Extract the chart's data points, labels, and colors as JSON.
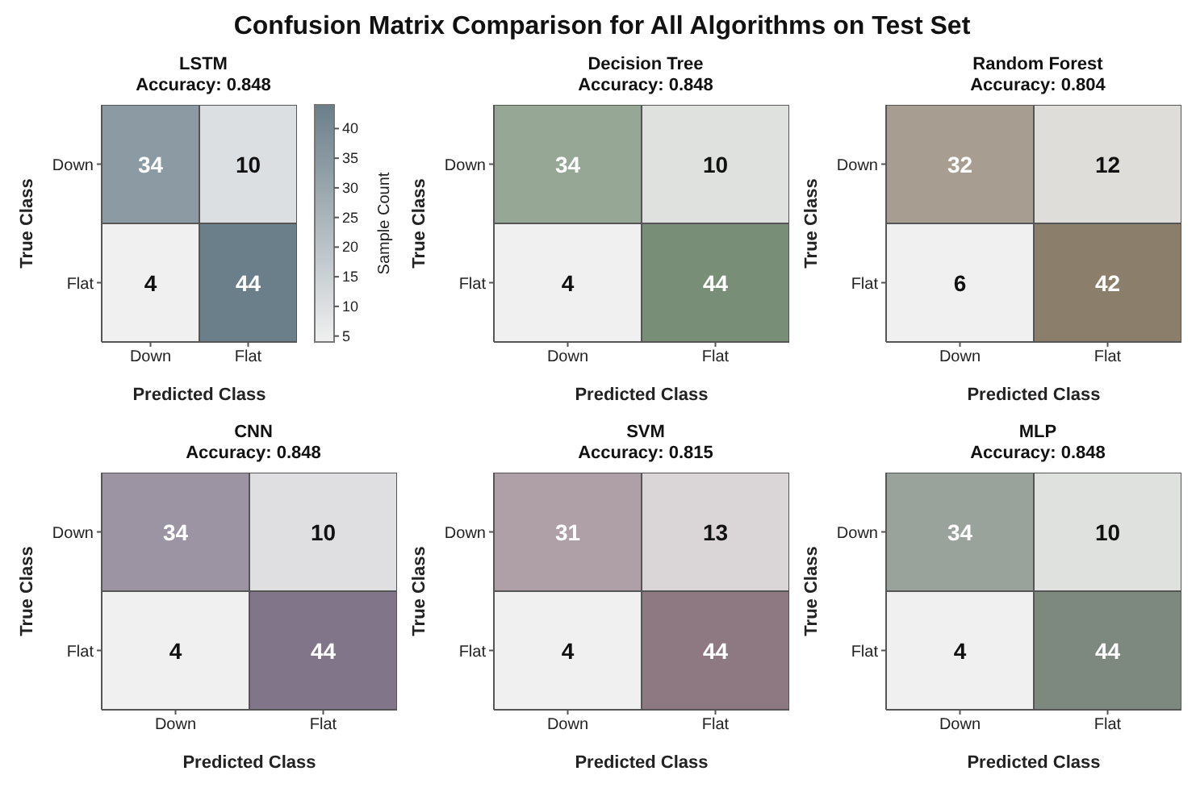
{
  "chart_data": [
    {
      "type": "heatmap",
      "title": "LSTM",
      "subtitle": "Accuracy: 0.848",
      "annotations": [
        "Confusion Matrix Comparison for All Algorithms on Test Set"
      ],
      "xlabel": "Predicted Class",
      "ylabel": "True Class",
      "categories": [
        "Down",
        "Flat"
      ],
      "y_categories": [
        "Down",
        "Flat"
      ],
      "cells": [
        [
          34,
          10
        ],
        [
          4,
          44
        ]
      ],
      "color": "#6a7f89",
      "data_labels": true,
      "clabel": "Sample Count",
      "clim": [
        4,
        44
      ],
      "cticks": [
        5,
        10,
        15,
        20,
        25,
        30,
        35,
        40
      ]
    },
    {
      "type": "heatmap",
      "title": "Decision Tree",
      "subtitle": "Accuracy: 0.848",
      "xlabel": "Predicted Class",
      "ylabel": "True Class",
      "categories": [
        "Down",
        "Flat"
      ],
      "y_categories": [
        "Down",
        "Flat"
      ],
      "cells": [
        [
          34,
          10
        ],
        [
          4,
          44
        ]
      ],
      "color": "#798e76",
      "data_labels": true
    },
    {
      "type": "heatmap",
      "title": "Random Forest",
      "subtitle": "Accuracy: 0.804",
      "xlabel": "Predicted Class",
      "ylabel": "True Class",
      "categories": [
        "Down",
        "Flat"
      ],
      "y_categories": [
        "Down",
        "Flat"
      ],
      "cells": [
        [
          32,
          12
        ],
        [
          6,
          42
        ]
      ],
      "color": "#8b7f6c",
      "data_labels": true
    },
    {
      "type": "heatmap",
      "title": "CNN",
      "subtitle": "Accuracy: 0.848",
      "xlabel": "Predicted Class",
      "ylabel": "True Class",
      "categories": [
        "Down",
        "Flat"
      ],
      "y_categories": [
        "Down",
        "Flat"
      ],
      "cells": [
        [
          34,
          10
        ],
        [
          4,
          44
        ]
      ],
      "color": "#807589",
      "data_labels": true
    },
    {
      "type": "heatmap",
      "title": "SVM",
      "subtitle": "Accuracy: 0.815",
      "xlabel": "Predicted Class",
      "ylabel": "True Class",
      "categories": [
        "Down",
        "Flat"
      ],
      "y_categories": [
        "Down",
        "Flat"
      ],
      "cells": [
        [
          31,
          13
        ],
        [
          4,
          44
        ]
      ],
      "color": "#8e7982",
      "data_labels": true
    },
    {
      "type": "heatmap",
      "title": "MLP",
      "subtitle": "Accuracy: 0.848",
      "xlabel": "Predicted Class",
      "ylabel": "True Class",
      "categories": [
        "Down",
        "Flat"
      ],
      "y_categories": [
        "Down",
        "Flat"
      ],
      "cells": [
        [
          34,
          10
        ],
        [
          4,
          44
        ]
      ],
      "color": "#7d897e",
      "data_labels": true
    }
  ]
}
